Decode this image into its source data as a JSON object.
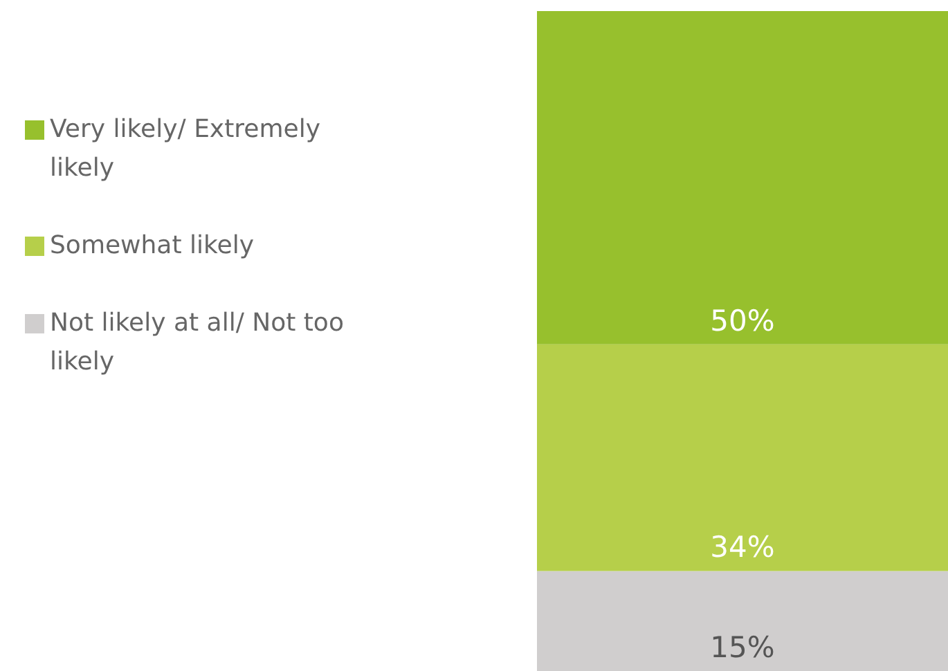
{
  "chart_data": {
    "type": "bar",
    "stacked": true,
    "categories": [
      null
    ],
    "legend": "left",
    "series": [
      {
        "name": "Not likely at all/ Not too likely",
        "color": "#d0cece",
        "values": [
          15
        ],
        "value_labels": [
          "15%"
        ]
      },
      {
        "name": "Somewhat likely",
        "color": "#b6cf4a",
        "values": [
          34
        ],
        "value_labels": [
          "34%"
        ]
      },
      {
        "name": "Very likely/ Extremely likely",
        "color": "#97c02d",
        "values": [
          50
        ],
        "value_labels": [
          "50%"
        ]
      }
    ]
  }
}
